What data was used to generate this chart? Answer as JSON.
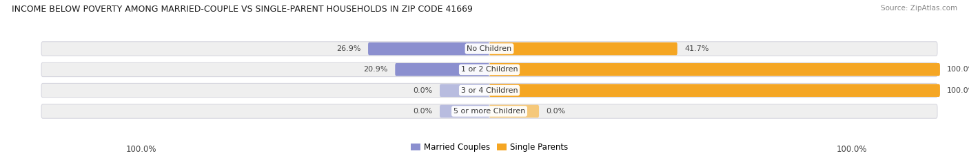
{
  "title": "INCOME BELOW POVERTY AMONG MARRIED-COUPLE VS SINGLE-PARENT HOUSEHOLDS IN ZIP CODE 41669",
  "source": "Source: ZipAtlas.com",
  "categories": [
    "No Children",
    "1 or 2 Children",
    "3 or 4 Children",
    "5 or more Children"
  ],
  "married_values": [
    26.9,
    20.9,
    0.0,
    0.0
  ],
  "single_values": [
    41.7,
    100.0,
    100.0,
    0.0
  ],
  "married_color": "#8b8fcf",
  "married_color_zero": "#b8bcdf",
  "single_color": "#f5a623",
  "single_color_zero": "#f5c87a",
  "row_bg_color": "#efefef",
  "row_border_color": "#d8d8e0",
  "max_value": 100.0,
  "left_label": "100.0%",
  "right_label": "100.0%",
  "legend_married": "Married Couples",
  "legend_single": "Single Parents",
  "title_fontsize": 9.0,
  "source_fontsize": 7.5,
  "axis_label_fontsize": 8.5,
  "bar_label_fontsize": 8.0,
  "cat_fontsize": 8.0,
  "zero_stub_pct": 5.5
}
